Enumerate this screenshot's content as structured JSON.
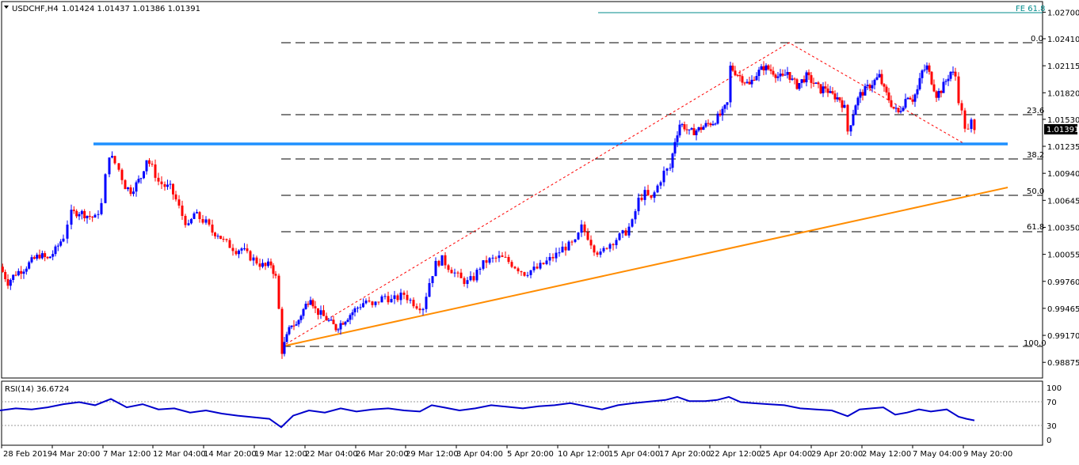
{
  "header": {
    "symbol_label": "USDCHF,H4",
    "ohlc_label": "1.01424 1.01437 1.01386 1.01391"
  },
  "rsi": {
    "label": "RSI(14) 36.6724",
    "levels": [
      "100",
      "70",
      "30",
      "0"
    ]
  },
  "fib_labels": {
    "fe": "FE 61.8",
    "l0": "0.0",
    "l236": "23.6",
    "l382": "38.2",
    "l50": "50.0",
    "l618": "61.8",
    "l100": "100.0"
  },
  "current_price": "1.01391",
  "colors": {
    "bull": "#0000ff",
    "bear": "#ff0000",
    "support": "#1e90ff",
    "trend": "#ff8c00",
    "rsi_line": "#0000cc",
    "fe_line": "#008b8b"
  },
  "chart_data": {
    "type": "candlestick",
    "title": "USDCHF,H4",
    "ylim": [
      0.9873,
      1.0279
    ],
    "yticks": [
      "1.02700",
      "1.02410",
      "1.02115",
      "1.01820",
      "1.01530",
      "1.01235",
      "1.00940",
      "1.00645",
      "1.00350",
      "1.00055",
      "0.99760",
      "0.99465",
      "0.99170",
      "0.98875"
    ],
    "xticks": [
      "28 Feb 2019",
      "4 Mar 20:00",
      "7 Mar 12:00",
      "12 Mar 04:00",
      "14 Mar 20:00",
      "19 Mar 12:00",
      "22 Mar 04:00",
      "26 Mar 20:00",
      "29 Mar 12:00",
      "3 Apr 04:00",
      "5 Apr 20:00",
      "10 Apr 12:00",
      "15 Apr 04:00",
      "17 Apr 20:00",
      "22 Apr 12:00",
      "25 Apr 04:00",
      "29 Apr 20:00",
      "2 May 12:00",
      "7 May 04:00",
      "9 May 20:00"
    ],
    "close_path": [
      [
        0,
        0.9992
      ],
      [
        10,
        0.9975
      ],
      [
        20,
        0.9985
      ],
      [
        30,
        0.999
      ],
      [
        40,
        0.9998
      ],
      [
        50,
        1.0005
      ],
      [
        60,
        1.0
      ],
      [
        70,
        1.001
      ],
      [
        80,
        1.0025
      ],
      [
        85,
        1.004
      ],
      [
        90,
        1.005
      ],
      [
        100,
        1.0052
      ],
      [
        110,
        1.0048
      ],
      [
        120,
        1.0045
      ],
      [
        128,
        1.006
      ],
      [
        133,
        1.009
      ],
      [
        138,
        1.0115
      ],
      [
        145,
        1.0105
      ],
      [
        150,
        1.0098
      ],
      [
        158,
        1.008
      ],
      [
        165,
        1.0075
      ],
      [
        172,
        1.0082
      ],
      [
        178,
        1.009
      ],
      [
        185,
        1.011
      ],
      [
        192,
        1.01
      ],
      [
        200,
        1.0085
      ],
      [
        208,
        1.008
      ],
      [
        215,
        1.0078
      ],
      [
        222,
        1.0065
      ],
      [
        230,
        1.0048
      ],
      [
        238,
        1.0035
      ],
      [
        245,
        1.005
      ],
      [
        252,
        1.0045
      ],
      [
        260,
        1.004
      ],
      [
        268,
        1.003
      ],
      [
        275,
        1.0028
      ],
      [
        282,
        1.002
      ],
      [
        290,
        1.0015
      ],
      [
        298,
        1.001
      ],
      [
        305,
        1.0012
      ],
      [
        312,
        1.0005
      ],
      [
        320,
        1.0
      ],
      [
        328,
        0.9995
      ],
      [
        335,
        0.9992
      ],
      [
        342,
        0.9995
      ],
      [
        348,
        0.998
      ],
      [
        352,
        0.9945
      ],
      [
        356,
        0.99
      ],
      [
        362,
        0.9915
      ],
      [
        368,
        0.993
      ],
      [
        374,
        0.9928
      ],
      [
        380,
        0.994
      ],
      [
        386,
        0.995
      ],
      [
        392,
        0.996
      ],
      [
        398,
        0.9945
      ],
      [
        405,
        0.994
      ],
      [
        412,
        0.9935
      ],
      [
        418,
        0.993
      ],
      [
        424,
        0.9925
      ],
      [
        430,
        0.993
      ],
      [
        436,
        0.9935
      ],
      [
        442,
        0.994
      ],
      [
        448,
        0.9945
      ],
      [
        455,
        0.995
      ],
      [
        462,
        0.9955
      ],
      [
        470,
        0.9948
      ],
      [
        478,
        0.9955
      ],
      [
        486,
        0.996
      ],
      [
        494,
        0.9955
      ],
      [
        502,
        0.9958
      ],
      [
        510,
        0.9962
      ],
      [
        518,
        0.9955
      ],
      [
        526,
        0.995
      ],
      [
        534,
        0.9948
      ],
      [
        542,
        0.9975
      ],
      [
        550,
        0.9995
      ],
      [
        558,
        1.0
      ],
      [
        566,
        0.9992
      ],
      [
        574,
        0.9985
      ],
      [
        582,
        0.9978
      ],
      [
        590,
        0.9975
      ],
      [
        598,
        0.998
      ],
      [
        606,
        0.9992
      ],
      [
        614,
        0.9998
      ],
      [
        622,
        1.0
      ],
      [
        630,
        1.0002
      ],
      [
        638,
        1.0
      ],
      [
        646,
        0.9995
      ],
      [
        654,
        0.999
      ],
      [
        662,
        0.9985
      ],
      [
        670,
        0.9988
      ],
      [
        678,
        0.999
      ],
      [
        686,
        0.9995
      ],
      [
        694,
        1.0
      ],
      [
        702,
        1.0005
      ],
      [
        710,
        1.0012
      ],
      [
        718,
        1.0015
      ],
      [
        726,
        1.0018
      ],
      [
        734,
        1.0035
      ],
      [
        742,
        1.0025
      ],
      [
        750,
        1.0012
      ],
      [
        758,
        1.0005
      ],
      [
        766,
        1.0015
      ],
      [
        774,
        1.002
      ],
      [
        782,
        1.0025
      ],
      [
        790,
        1.003
      ],
      [
        798,
        1.004
      ],
      [
        806,
        1.0065
      ],
      [
        814,
        1.0072
      ],
      [
        822,
        1.0065
      ],
      [
        830,
        1.008
      ],
      [
        838,
        1.0095
      ],
      [
        846,
        1.01
      ],
      [
        852,
        1.013
      ],
      [
        858,
        1.0148
      ],
      [
        864,
        1.0145
      ],
      [
        870,
        1.0138
      ],
      [
        876,
        1.014
      ],
      [
        882,
        1.0142
      ],
      [
        888,
        1.0145
      ],
      [
        894,
        1.0148
      ],
      [
        900,
        1.015
      ],
      [
        906,
        1.0155
      ],
      [
        912,
        1.016
      ],
      [
        918,
        1.017
      ],
      [
        922,
        1.021
      ],
      [
        928,
        1.0205
      ],
      [
        934,
        1.02
      ],
      [
        940,
        1.0195
      ],
      [
        946,
        1.019
      ],
      [
        952,
        1.02
      ],
      [
        958,
        1.0205
      ],
      [
        964,
        1.021
      ],
      [
        970,
        1.0208
      ],
      [
        976,
        1.0205
      ],
      [
        982,
        1.02
      ],
      [
        988,
        1.0198
      ],
      [
        994,
        1.0205
      ],
      [
        1000,
        1.0195
      ],
      [
        1006,
        1.019
      ],
      [
        1012,
        1.0195
      ],
      [
        1018,
        1.02
      ],
      [
        1024,
        1.0195
      ],
      [
        1030,
        1.019
      ],
      [
        1036,
        1.0185
      ],
      [
        1042,
        1.0188
      ],
      [
        1048,
        1.018
      ],
      [
        1054,
        1.0178
      ],
      [
        1060,
        1.0175
      ],
      [
        1066,
        1.0165
      ],
      [
        1070,
        1.014
      ],
      [
        1074,
        1.015
      ],
      [
        1080,
        1.017
      ],
      [
        1086,
        1.018
      ],
      [
        1092,
        1.0185
      ],
      [
        1098,
        1.019
      ],
      [
        1104,
        1.0195
      ],
      [
        1110,
        1.02
      ],
      [
        1116,
        1.0185
      ],
      [
        1122,
        1.0175
      ],
      [
        1128,
        1.0165
      ],
      [
        1134,
        1.016
      ],
      [
        1140,
        1.017
      ],
      [
        1146,
        1.018
      ],
      [
        1152,
        1.0175
      ],
      [
        1158,
        1.0185
      ],
      [
        1164,
        1.0205
      ],
      [
        1170,
        1.021
      ],
      [
        1176,
        1.0195
      ],
      [
        1182,
        1.018
      ],
      [
        1188,
        1.0185
      ],
      [
        1194,
        1.0195
      ],
      [
        1200,
        1.0205
      ],
      [
        1206,
        1.02
      ],
      [
        1210,
        1.0175
      ],
      [
        1214,
        1.016
      ],
      [
        1218,
        1.0145
      ],
      [
        1222,
        1.014
      ],
      [
        1226,
        1.015
      ],
      [
        1230,
        1.01391
      ]
    ],
    "rsi_path": [
      [
        0,
        56
      ],
      [
        20,
        60
      ],
      [
        40,
        58
      ],
      [
        60,
        62
      ],
      [
        80,
        68
      ],
      [
        100,
        72
      ],
      [
        120,
        66
      ],
      [
        140,
        78
      ],
      [
        160,
        62
      ],
      [
        180,
        68
      ],
      [
        200,
        58
      ],
      [
        220,
        60
      ],
      [
        240,
        52
      ],
      [
        260,
        56
      ],
      [
        280,
        50
      ],
      [
        300,
        46
      ],
      [
        320,
        43
      ],
      [
        340,
        40
      ],
      [
        355,
        24
      ],
      [
        370,
        46
      ],
      [
        390,
        56
      ],
      [
        410,
        52
      ],
      [
        430,
        60
      ],
      [
        450,
        54
      ],
      [
        470,
        58
      ],
      [
        490,
        60
      ],
      [
        510,
        56
      ],
      [
        530,
        54
      ],
      [
        545,
        66
      ],
      [
        560,
        62
      ],
      [
        580,
        56
      ],
      [
        600,
        60
      ],
      [
        620,
        66
      ],
      [
        640,
        63
      ],
      [
        660,
        60
      ],
      [
        680,
        64
      ],
      [
        700,
        66
      ],
      [
        720,
        70
      ],
      [
        740,
        64
      ],
      [
        760,
        58
      ],
      [
        780,
        66
      ],
      [
        800,
        70
      ],
      [
        820,
        73
      ],
      [
        840,
        76
      ],
      [
        855,
        82
      ],
      [
        870,
        74
      ],
      [
        890,
        74
      ],
      [
        905,
        76
      ],
      [
        920,
        82
      ],
      [
        935,
        72
      ],
      [
        950,
        70
      ],
      [
        970,
        68
      ],
      [
        990,
        66
      ],
      [
        1010,
        60
      ],
      [
        1030,
        58
      ],
      [
        1050,
        56
      ],
      [
        1070,
        45
      ],
      [
        1085,
        58
      ],
      [
        1100,
        60
      ],
      [
        1115,
        62
      ],
      [
        1130,
        48
      ],
      [
        1145,
        52
      ],
      [
        1160,
        58
      ],
      [
        1175,
        54
      ],
      [
        1195,
        58
      ],
      [
        1210,
        44
      ],
      [
        1220,
        40
      ],
      [
        1230,
        37
      ]
    ],
    "rsi_ylim": [
      0,
      100
    ]
  }
}
